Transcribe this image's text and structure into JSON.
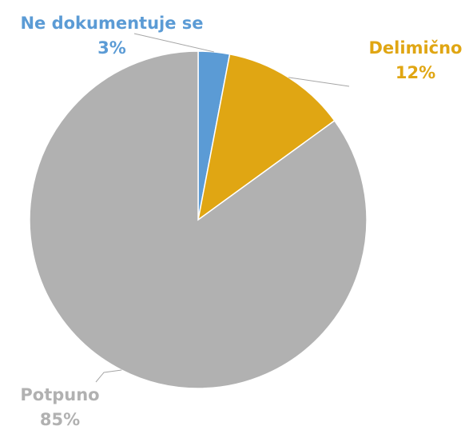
{
  "chart_data": {
    "type": "pie",
    "categories": [
      "Ne dokumentuje se",
      "Delimično",
      "Potpuno"
    ],
    "values": [
      3,
      12,
      85
    ],
    "value_labels": [
      "3%",
      "12%",
      "85%"
    ],
    "colors": [
      "#5b9bd5",
      "#e0a613",
      "#b1b1b1"
    ]
  }
}
